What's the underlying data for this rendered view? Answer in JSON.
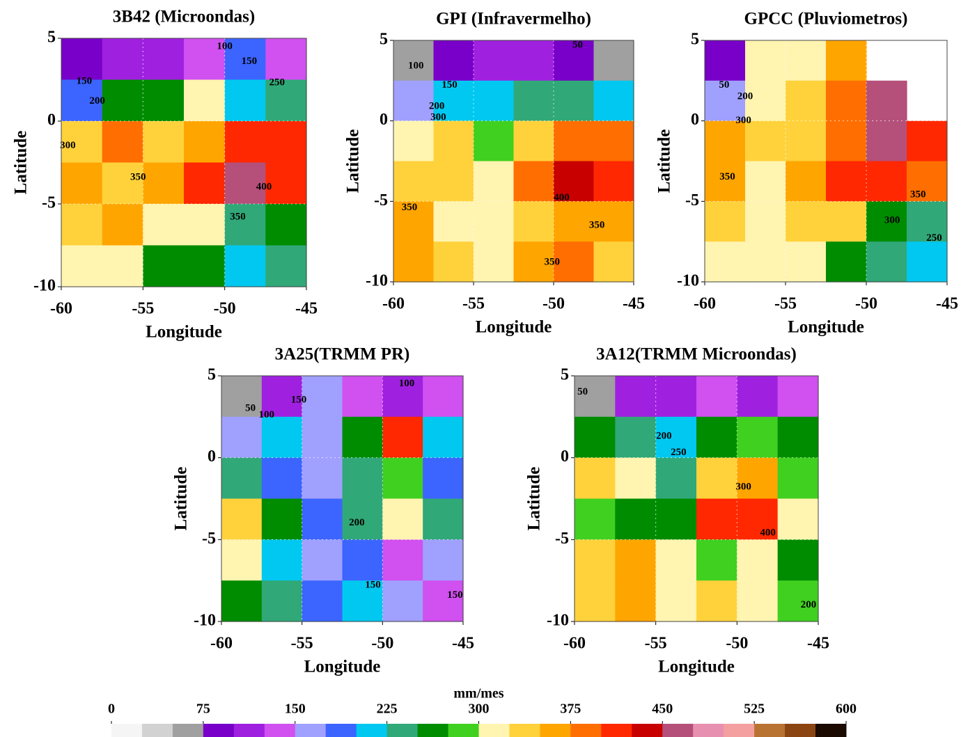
{
  "chart_data": [
    {
      "type": "contour",
      "title": "3B42 (Microondas)",
      "xlabel": "Longitude",
      "ylabel": "Latitude",
      "xlim": [
        -60,
        -45
      ],
      "ylim": [
        -10,
        5
      ],
      "xticks": [
        -60,
        -55,
        -50,
        -45
      ],
      "yticks": [
        5,
        0,
        -5,
        -10
      ],
      "field": [
        [
          90,
          120,
          110,
          140,
          180,
          130
        ],
        [
          190,
          250,
          260,
          300,
          220,
          230
        ],
        [
          330,
          380,
          330,
          370,
          420,
          410
        ],
        [
          360,
          340,
          360,
          420,
          470,
          400
        ],
        [
          340,
          350,
          320,
          300,
          240,
          260
        ],
        [
          300,
          320,
          270,
          250,
          210,
          230
        ]
      ],
      "contour_labels": [
        {
          "text": "100",
          "lon": -50,
          "lat": 4.5
        },
        {
          "text": "150",
          "lon": -48.5,
          "lat": 3.6
        },
        {
          "text": "250",
          "lon": -46.8,
          "lat": 2.3
        },
        {
          "text": "150",
          "lon": -58.6,
          "lat": 2.4
        },
        {
          "text": "200",
          "lon": -57.8,
          "lat": 1.2
        },
        {
          "text": "300",
          "lon": -59.6,
          "lat": -1.5
        },
        {
          "text": "350",
          "lon": -55.3,
          "lat": -3.4
        },
        {
          "text": "400",
          "lon": -47.6,
          "lat": -4
        },
        {
          "text": "350",
          "lon": -49.2,
          "lat": -5.8
        }
      ]
    },
    {
      "type": "contour",
      "title": "GPI (Infravermelho)",
      "xlabel": "Longitude",
      "ylabel": "Latitude",
      "xlim": [
        -60,
        -45
      ],
      "ylim": [
        -10,
        5
      ],
      "xticks": [
        -60,
        -55,
        -50,
        -45
      ],
      "yticks": [
        5,
        0,
        -5,
        -10
      ],
      "field": [
        [
          60,
          90,
          100,
          110,
          90,
          70
        ],
        [
          170,
          200,
          220,
          230,
          230,
          220
        ],
        [
          320,
          330,
          280,
          340,
          390,
          380
        ],
        [
          340,
          330,
          320,
          380,
          430,
          400
        ],
        [
          360,
          320,
          310,
          330,
          370,
          350
        ],
        [
          350,
          330,
          320,
          360,
          380,
          340
        ]
      ],
      "contour_labels": [
        {
          "text": "50",
          "lon": -48.5,
          "lat": 4.7
        },
        {
          "text": "100",
          "lon": -58.6,
          "lat": 3.4
        },
        {
          "text": "150",
          "lon": -56.5,
          "lat": 2.2
        },
        {
          "text": "200",
          "lon": -57.3,
          "lat": 0.9
        },
        {
          "text": "300",
          "lon": -57.2,
          "lat": 0.2
        },
        {
          "text": "350",
          "lon": -59,
          "lat": -5.4
        },
        {
          "text": "400",
          "lon": -49.5,
          "lat": -4.8
        },
        {
          "text": "350",
          "lon": -47.3,
          "lat": -6.5
        },
        {
          "text": "350",
          "lon": -50.1,
          "lat": -8.8
        }
      ]
    },
    {
      "type": "contour",
      "title": "GPCC (Pluviometros)",
      "xlabel": "Longitude",
      "ylabel": "Latitude",
      "xlim": [
        -60,
        -45
      ],
      "ylim": [
        -10,
        5
      ],
      "xticks": [
        -60,
        -55,
        -50,
        -45
      ],
      "yticks": [
        5,
        0,
        -5,
        -10
      ],
      "field": [
        [
          80,
          300,
          320,
          360,
          null,
          null
        ],
        [
          170,
          320,
          330,
          390,
          460,
          null
        ],
        [
          350,
          340,
          330,
          380,
          450,
          400
        ],
        [
          350,
          320,
          360,
          400,
          420,
          380
        ],
        [
          330,
          320,
          330,
          340,
          270,
          240
        ],
        [
          310,
          310,
          300,
          250,
          230,
          200
        ]
      ],
      "contour_labels": [
        {
          "text": "50",
          "lon": -58.8,
          "lat": 2.2
        },
        {
          "text": "200",
          "lon": -57.5,
          "lat": 1.5
        },
        {
          "text": "300",
          "lon": -57.6,
          "lat": 0
        },
        {
          "text": "350",
          "lon": -58.6,
          "lat": -3.5
        },
        {
          "text": "350",
          "lon": -46.8,
          "lat": -4.6
        },
        {
          "text": "300",
          "lon": -48.4,
          "lat": -6.2
        },
        {
          "text": "250",
          "lon": -45.8,
          "lat": -7.3
        }
      ]
    },
    {
      "type": "contour",
      "title": "3A25(TRMM PR)",
      "xlabel": "Longitude",
      "ylabel": "Latitude",
      "xlim": [
        -60,
        -45
      ],
      "ylim": [
        -10,
        5
      ],
      "xticks": [
        -60,
        -55,
        -50,
        -45
      ],
      "yticks": [
        5,
        0,
        -5,
        -10
      ],
      "field": [
        [
          70,
          110,
          160,
          140,
          110,
          140
        ],
        [
          160,
          200,
          150,
          260,
          420,
          200
        ],
        [
          230,
          180,
          150,
          230,
          280,
          190
        ],
        [
          330,
          260,
          190,
          240,
          300,
          240
        ],
        [
          310,
          200,
          170,
          180,
          140,
          170
        ],
        [
          250,
          230,
          180,
          200,
          150,
          130
        ]
      ],
      "contour_labels": [
        {
          "text": "50",
          "lon": -58.2,
          "lat": 3
        },
        {
          "text": "100",
          "lon": -57.2,
          "lat": 2.6
        },
        {
          "text": "150",
          "lon": -55.2,
          "lat": 3.5
        },
        {
          "text": "100",
          "lon": -48.5,
          "lat": 4.5
        },
        {
          "text": "200",
          "lon": -51.6,
          "lat": -4
        },
        {
          "text": "150",
          "lon": -50.6,
          "lat": -7.8
        },
        {
          "text": "150",
          "lon": -45.5,
          "lat": -8.4
        }
      ]
    },
    {
      "type": "contour",
      "title": "3A12(TRMM Microondas)",
      "xlabel": "Longitude",
      "ylabel": "Latitude",
      "xlim": [
        -60,
        -45
      ],
      "ylim": [
        -10,
        5
      ],
      "xticks": [
        -60,
        -55,
        -50,
        -45
      ],
      "yticks": [
        5,
        0,
        -5,
        -10
      ],
      "field": [
        [
          70,
          120,
          110,
          130,
          120,
          140
        ],
        [
          250,
          240,
          220,
          260,
          280,
          250
        ],
        [
          330,
          300,
          230,
          330,
          370,
          290
        ],
        [
          290,
          260,
          270,
          410,
          400,
          300
        ],
        [
          340,
          370,
          300,
          280,
          300,
          260
        ],
        [
          330,
          360,
          320,
          330,
          300,
          280
        ]
      ],
      "contour_labels": [
        {
          "text": "50",
          "lon": -59.5,
          "lat": 4
        },
        {
          "text": "200",
          "lon": -54.5,
          "lat": 1.3
        },
        {
          "text": "250",
          "lon": -53.6,
          "lat": 0.3
        },
        {
          "text": "300",
          "lon": -49.6,
          "lat": -1.8
        },
        {
          "text": "400",
          "lon": -48.1,
          "lat": -4.6
        },
        {
          "text": "200",
          "lon": -45.6,
          "lat": -9
        }
      ]
    },
    {
      "type": "colorbar",
      "label": "mm/mes",
      "xlim": [
        0,
        600
      ],
      "xticks": [
        0,
        75,
        150,
        225,
        300,
        375,
        450,
        525,
        600
      ],
      "colors": [
        "#f5f5f5",
        "#d2d2d2",
        "#a0a0a0",
        "#7800c8",
        "#a020e0",
        "#d050f0",
        "#a0a0ff",
        "#3c64ff",
        "#00c8f0",
        "#30a878",
        "#008c00",
        "#40d020",
        "#fff4b0",
        "#ffd23c",
        "#ffa500",
        "#ff6e00",
        "#ff2800",
        "#c80000",
        "#b4507a",
        "#e890b0",
        "#f4a0a0",
        "#b87333",
        "#8b4513",
        "#1a0a00"
      ]
    }
  ]
}
